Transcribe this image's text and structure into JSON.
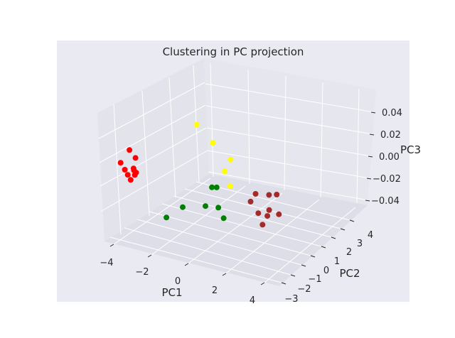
{
  "chart_data": {
    "type": "scatter3d",
    "title": "Clustering in PC projection",
    "xlabel": "PC1",
    "ylabel": "PC2",
    "zlabel": "PC3",
    "x_ticks": [
      "−4",
      "−2",
      "0",
      "2",
      "4"
    ],
    "y_ticks": [
      "−3",
      "−2",
      "−1",
      "0",
      "1",
      "2",
      "3",
      "4"
    ],
    "z_ticks": [
      "0.04",
      "0.02",
      "0.00",
      "−0.02",
      "−0.04"
    ],
    "xlim": [
      -4.5,
      5
    ],
    "ylim": [
      -3,
      5
    ],
    "zlim": [
      -0.05,
      0.05
    ],
    "grid": true,
    "background": "#eaeaf2",
    "grid_color": "#ffffff",
    "colors": {
      "cluster_red": "#ff0000",
      "cluster_green": "#008000",
      "cluster_yellow": "#ffff00",
      "cluster_brown": "#a52a2a"
    },
    "series": [
      {
        "color": "#ff0000",
        "points": [
          [
            -2.5,
            0.8,
            0.01
          ],
          [
            -3.4,
            1.2,
            0.0
          ],
          [
            -2.9,
            0.2,
            0.0
          ],
          [
            -2.6,
            0.0,
            0.02
          ],
          [
            -2.8,
            0.4,
            -0.005
          ],
          [
            -2.7,
            0.6,
            -0.01
          ],
          [
            -2.4,
            0.3,
            -0.003
          ],
          [
            -2.6,
            0.8,
            0.0
          ],
          [
            -2.5,
            0.5,
            0.0
          ],
          [
            -2.3,
            0.2,
            0.0
          ]
        ]
      },
      {
        "color": "#008000",
        "points": [
          [
            -0.5,
            -0.5,
            -0.03
          ],
          [
            0.2,
            0.1,
            -0.02
          ],
          [
            1.5,
            1.0,
            0.0
          ],
          [
            1.7,
            1.2,
            0.0
          ],
          [
            2.4,
            0.0,
            -0.02
          ],
          [
            1.6,
            -0.6,
            -0.01
          ],
          [
            2.2,
            -0.3,
            -0.01
          ]
        ]
      },
      {
        "color": "#ffff00",
        "points": [
          [
            0.0,
            3.5,
            0.04
          ],
          [
            1.0,
            3.0,
            0.03
          ],
          [
            2.0,
            2.8,
            0.02
          ],
          [
            1.8,
            2.4,
            0.01
          ],
          [
            2.2,
            2.0,
            0.0
          ]
        ]
      },
      {
        "color": "#a52a2a",
        "points": [
          [
            3.6,
            1.8,
            0.0
          ],
          [
            4.2,
            2.2,
            0.0
          ],
          [
            4.5,
            2.6,
            0.0
          ],
          [
            4.4,
            1.5,
            -0.01
          ],
          [
            3.5,
            1.2,
            -0.005
          ],
          [
            4.1,
            0.5,
            -0.01
          ],
          [
            4.5,
            0.8,
            -0.012
          ],
          [
            4.3,
            0.6,
            -0.02
          ],
          [
            5.0,
            1.2,
            -0.01
          ]
        ]
      }
    ]
  }
}
